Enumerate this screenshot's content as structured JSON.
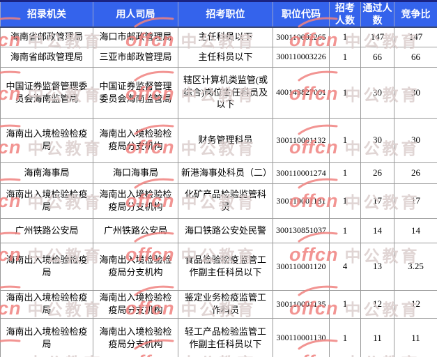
{
  "watermark": {
    "logo": "offcn",
    "brand": "中公教育"
  },
  "colors": {
    "header_bg": "#3463ec",
    "header_text": "#ffffff",
    "header_top": "#1a2382",
    "header_bottom": "#3c4a75",
    "header_sep": "#9aa4cc",
    "border": "#999999",
    "watermark_logo": "#f0827f",
    "watermark_brand": "#dbcecd"
  },
  "table": {
    "headers": [
      "招录机关",
      "用人司局",
      "招考职位",
      "职位代码",
      "招考人数",
      "通过人数",
      "竞争比"
    ],
    "rows": [
      {
        "org": "海南省邮政管理局",
        "dept": "海口市邮政管理局",
        "position": "主任科员以下",
        "code": "300110002265",
        "recruit": "1",
        "passed": "147",
        "ratio": "147"
      },
      {
        "org": "海南省邮政管理局",
        "dept": "三亚市邮政管理局",
        "position": "主任科员以下",
        "code": "300110003226",
        "recruit": "1",
        "passed": "66",
        "ratio": "66"
      },
      {
        "org": "中国证券监督管理委员会海南监管局",
        "dept": "中国证券监督管理委员会海南监管局",
        "position": "辖区计算机类监管(或综合)岗位主任科员及以下",
        "code": "400143827001",
        "recruit": "1",
        "passed": "30",
        "ratio": "30"
      },
      {
        "org": "海南出入境检验检疫局",
        "dept": "海南出入境检验检疫局分支机构",
        "position": "财务管理科员",
        "code": "300110001132",
        "recruit": "1",
        "passed": "30",
        "ratio": "30"
      },
      {
        "org": "海南海事局",
        "dept": "海口海事局",
        "position": "新港海事处科员（二）",
        "code": "300110001274",
        "recruit": "1",
        "passed": "26",
        "ratio": "26"
      },
      {
        "org": "海南出入境检验检疫局",
        "dept": "海南出入境检验检疫局分支机构",
        "position": "化矿产品检验监管科员",
        "code": "300110001131",
        "recruit": "1",
        "passed": "17",
        "ratio": "17"
      },
      {
        "org": "广州铁路公安局",
        "dept": "广州铁路公安局",
        "position": "海口铁路公安处民警",
        "code": "300130851037",
        "recruit": "1",
        "passed": "14",
        "ratio": "14"
      },
      {
        "org": "海南出入境检验检疫局",
        "dept": "海南出入境检验检疫局分支机构",
        "position": "食品检验检疫监管工作副主任科员以下",
        "code": "300110001120",
        "recruit": "4",
        "passed": "13",
        "ratio": "3.25"
      },
      {
        "org": "海南出入境检验检疫局",
        "dept": "海南出入境检验检疫局分支机构",
        "position": "鉴定业务检疫监管工作科员",
        "code": "300110001135",
        "recruit": "1",
        "passed": "12",
        "ratio": "12"
      },
      {
        "org": "海南出入境检验检疫局",
        "dept": "海南出入境检验检疫局分支机构",
        "position": "轻工产品检验监管工作副主任科员以下",
        "code": "300110001130",
        "recruit": "1",
        "passed": "11",
        "ratio": "11"
      }
    ]
  }
}
